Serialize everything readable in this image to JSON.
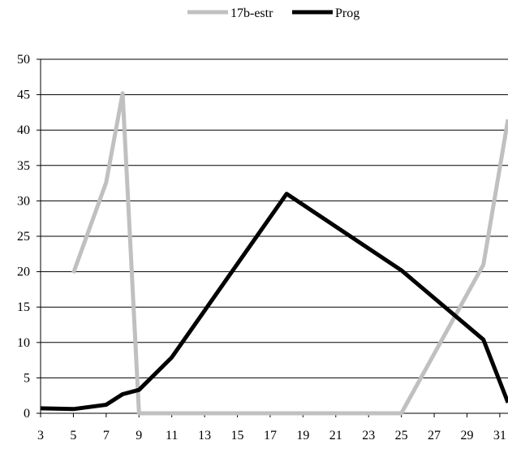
{
  "chart_data": {
    "type": "line",
    "xlim": [
      3,
      31.5
    ],
    "ylim": [
      0,
      50
    ],
    "x_ticks": [
      3,
      5,
      7,
      9,
      11,
      13,
      15,
      17,
      19,
      21,
      23,
      25,
      27,
      29,
      31
    ],
    "y_ticks": [
      0,
      5,
      10,
      15,
      20,
      25,
      30,
      35,
      40,
      45,
      50
    ],
    "grid": "horizontal",
    "legend_position": "top-center",
    "series": [
      {
        "name": "17b-estr",
        "color": "#c0c0c0",
        "points": [
          [
            5,
            19.8
          ],
          [
            7,
            32.6
          ],
          [
            8,
            45.2
          ],
          [
            9,
            0
          ],
          [
            10,
            0
          ],
          [
            25,
            0
          ],
          [
            30,
            21
          ],
          [
            31.5,
            41.5
          ]
        ]
      },
      {
        "name": "Prog",
        "color": "#000000",
        "points": [
          [
            3,
            0.7
          ],
          [
            5,
            0.6
          ],
          [
            7,
            1.2
          ],
          [
            8,
            2.7
          ],
          [
            9,
            3.3
          ],
          [
            11,
            7.9
          ],
          [
            18,
            31
          ],
          [
            25,
            20.2
          ],
          [
            30,
            10.4
          ],
          [
            31.5,
            1.5
          ]
        ]
      }
    ]
  }
}
